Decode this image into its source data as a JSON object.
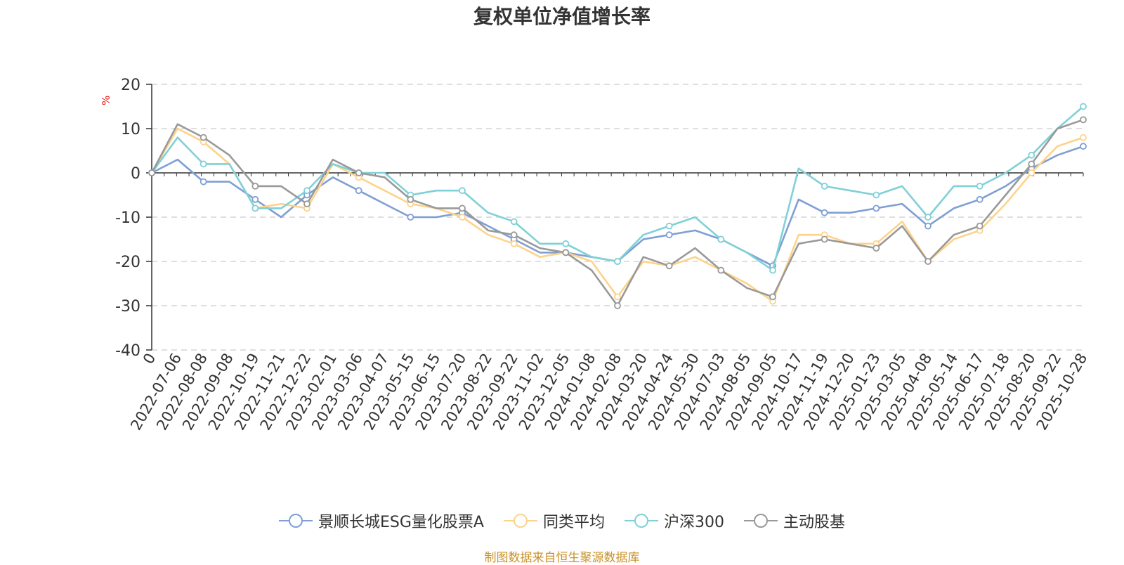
{
  "chart_data": {
    "type": "line",
    "title": "复权单位净值增长率",
    "ylabel": "%",
    "ylim": [
      -40,
      20
    ],
    "y_ticks": [
      20,
      10,
      0,
      -10,
      -20,
      -30,
      -40
    ],
    "grid": true,
    "legend_position": "bottom",
    "x_tick_labels": [
      "0",
      "2022-07-06",
      "2022-08-08",
      "2022-09-08",
      "2022-10-19",
      "2022-11-21",
      "2022-12-22",
      "2023-02-01",
      "2023-03-06",
      "2023-04-07",
      "2023-05-15",
      "2023-06-15",
      "2023-07-20",
      "2023-08-22",
      "2023-09-22",
      "2023-11-02",
      "2023-12-05",
      "2024-01-08",
      "2024-02-08",
      "2024-03-20",
      "2024-04-24",
      "2024-05-30",
      "2024-07-03",
      "2024-08-05",
      "2024-09-05",
      "2024-10-17",
      "2024-11-19",
      "2024-12-20",
      "2025-01-23",
      "2025-03-05",
      "2025-04-08",
      "2025-05-14",
      "2025-06-17",
      "2025-07-18",
      "2025-08-20",
      "2025-09-22",
      "2025-10-28"
    ],
    "series": [
      {
        "name": "景顺长城ESG量化股票A",
        "color": "#7f9fd4",
        "values": [
          0,
          3,
          -2,
          -2,
          -6,
          -10,
          -5,
          -1,
          -4,
          -7,
          -10,
          -10,
          -9,
          -12,
          -15,
          -18,
          -18,
          -19,
          -20,
          -15,
          -14,
          -13,
          -15,
          -18,
          -21,
          -6,
          -9,
          -9,
          -8,
          -7,
          -12,
          -8,
          -6,
          -3,
          1,
          4,
          6
        ]
      },
      {
        "name": "同类平均",
        "color": "#fdd38b",
        "values": [
          0,
          10,
          7,
          2,
          -8,
          -7,
          -8,
          2,
          -1,
          -4,
          -7,
          -8,
          -10,
          -14,
          -16,
          -19,
          -18,
          -20,
          -28,
          -20,
          -21,
          -19,
          -22,
          -25,
          -29,
          -14,
          -14,
          -16,
          -16,
          -11,
          -20,
          -15,
          -13,
          -7,
          0,
          6,
          8
        ]
      },
      {
        "name": "沪深300",
        "color": "#7fd1d7",
        "values": [
          0,
          8,
          2,
          2,
          -8,
          -8,
          -4,
          2,
          0,
          0,
          -5,
          -4,
          -4,
          -9,
          -11,
          -16,
          -16,
          -19,
          -20,
          -14,
          -12,
          -10,
          -15,
          -18,
          -22,
          1,
          -3,
          -4,
          -5,
          -3,
          -10,
          -3,
          -3,
          0,
          4,
          10,
          15
        ]
      },
      {
        "name": "主动股基",
        "color": "#999999",
        "values": [
          0,
          11,
          8,
          4,
          -3,
          -3,
          -7,
          3,
          0,
          -1,
          -6,
          -8,
          -8,
          -13,
          -14,
          -17,
          -18,
          -22,
          -30,
          -19,
          -21,
          -17,
          -22,
          -26,
          -28,
          -16,
          -15,
          -16,
          -17,
          -12,
          -20,
          -14,
          -12,
          -5,
          2,
          10,
          12
        ]
      }
    ]
  },
  "footer": {
    "source": "制图数据来自恒生聚源数据库"
  }
}
